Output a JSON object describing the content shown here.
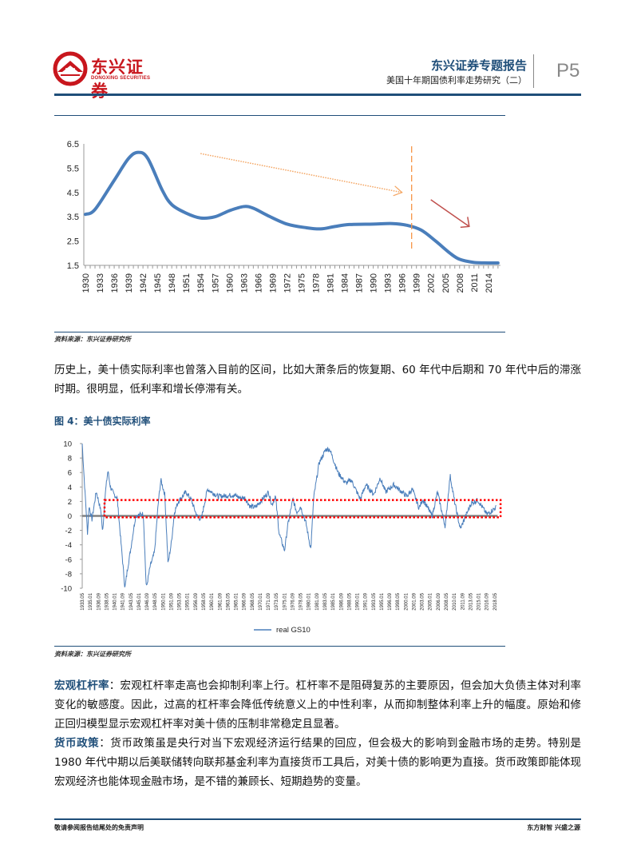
{
  "header": {
    "logo_cn": "东兴证券",
    "logo_en": "DONGXING SECURITIES",
    "report_type": "东兴证券专题报告",
    "report_title": "美国十年期国债利率走势研究（二）",
    "page_number": "P5",
    "brand_color": "#1f4e79",
    "logo_color": "#c8161d"
  },
  "figure3": {
    "source": "资料来源：东兴证券研究所"
  },
  "paragraph1": "历史上，美十债实际利率也曾落入目前的区间，比如大萧条后的恢复期、60 年代中后期和 70 年代中后的滞涨时期。很明显，低利率和增长停滞有关。",
  "figure4": {
    "title": "图 4：美十债实际利率",
    "source": "资料来源：东兴证券研究所"
  },
  "section_leverage": {
    "label": "宏观杠杆率",
    "text": "：宏观杠杆率走高也会抑制利率上行。杠杆率不是阻碍复苏的主要原因，但会加大负债主体对利率变化的敏感度。因此，过高的杠杆率会降低传统意义上的中性利率，从而抑制整体利率上升的幅度。原始和修正回归模型显示宏观杠杆率对美十债的压制非常稳定且显著。"
  },
  "section_monetary": {
    "label": "货币政策",
    "text": "：货币政策虽是央行对当下宏观经济运行结果的回应，但会极大的影响到金融市场的走势。特别是 1980 年代中期以后美联储转向联邦基金利率为直接货币工具后，对美十债的影响更为直接。货币政策即能体现宏观经济也能体现金融市场，是不错的兼顾长、短期趋势的变量。"
  },
  "footer": {
    "left": "敬请参阅报告结尾处的免责声明",
    "right": "东方财智 兴盛之源"
  },
  "chart_data": [
    {
      "type": "line",
      "title": "",
      "xlabel": "",
      "ylabel": "",
      "xlim": [
        1930,
        2016
      ],
      "ylim": [
        1.5,
        6.5
      ],
      "y_ticks": [
        "6.5",
        "5.5",
        "4.5",
        "3.5",
        "2.5",
        "1.5"
      ],
      "x_tick_labels": [
        "1930",
        "1933",
        "1936",
        "1939",
        "1942",
        "1945",
        "1948",
        "1951",
        "1954",
        "1957",
        "1960",
        "1963",
        "1966",
        "1969",
        "1972",
        "1975",
        "1978",
        "1981",
        "1984",
        "1987",
        "1990",
        "1993",
        "1996",
        "1999",
        "2002",
        "2005",
        "2008",
        "2011",
        "2014"
      ],
      "grid": false,
      "line_color": "#4a7ebb",
      "series": [
        {
          "points": [
            [
              1930,
              3.6
            ],
            [
              1932,
              3.8
            ],
            [
              1936,
              5.0
            ],
            [
              1939,
              5.9
            ],
            [
              1941,
              6.15
            ],
            [
              1943,
              5.9
            ],
            [
              1946,
              4.6
            ],
            [
              1948,
              4.0
            ],
            [
              1951,
              3.65
            ],
            [
              1954,
              3.45
            ],
            [
              1957,
              3.5
            ],
            [
              1960,
              3.75
            ],
            [
              1963,
              3.92
            ],
            [
              1965,
              3.85
            ],
            [
              1968,
              3.55
            ],
            [
              1972,
              3.2
            ],
            [
              1976,
              3.05
            ],
            [
              1979,
              3.0
            ],
            [
              1982,
              3.1
            ],
            [
              1985,
              3.18
            ],
            [
              1990,
              3.2
            ],
            [
              1994,
              3.22
            ],
            [
              1997,
              3.15
            ],
            [
              2000,
              2.95
            ],
            [
              2003,
              2.5
            ],
            [
              2006,
              2.0
            ],
            [
              2008,
              1.75
            ],
            [
              2011,
              1.62
            ],
            [
              2014,
              1.6
            ],
            [
              2016,
              1.6
            ]
          ]
        }
      ],
      "annotations": [
        {
          "type": "dotted-arrow",
          "color": "#f4a460",
          "from": [
            1954,
            6.1
          ],
          "to": [
            1996,
            4.5
          ]
        },
        {
          "type": "dashed-vertical-line",
          "color": "#f79646",
          "x": 1998,
          "y_range": [
            2.1,
            6.4
          ]
        },
        {
          "type": "arrow",
          "color": "#c0504d",
          "from": [
            2002,
            4.2
          ],
          "to": [
            2010,
            3.1
          ]
        }
      ]
    },
    {
      "type": "line",
      "title": "",
      "xlabel": "",
      "ylabel": "",
      "ylim": [
        -10,
        10
      ],
      "y_ticks": [
        "10",
        "8",
        "6",
        "4",
        "2",
        "0",
        "-2",
        "-4",
        "-6",
        "-8",
        "-10"
      ],
      "x_tick_labels": [
        "1933.05",
        "1935.01",
        "1936.09",
        "1938.05",
        "1940.01",
        "1941.09",
        "1943.05",
        "1945.01",
        "1946.09",
        "1948.05",
        "1950.01",
        "1951.09",
        "1953.05",
        "1955.01",
        "1956.09",
        "1958.05",
        "1960.01",
        "1961.09",
        "1963.05",
        "1965.01",
        "1966.09",
        "1968.05",
        "1970.01",
        "1971.09",
        "1973.05",
        "1975.01",
        "1976.09",
        "1978.05",
        "1980.01",
        "1981.09",
        "1983.05",
        "1985.01",
        "1986.09",
        "1988.05",
        "1990.01",
        "1991.09",
        "1993.05",
        "1995.01",
        "1996.09",
        "1998.05",
        "2000.01",
        "2001.09",
        "2003.05",
        "2005.01",
        "2006.09",
        "2008.05",
        "2010.01",
        "2011.09",
        "2013.05",
        "2015.01",
        "2016.09",
        "2018.05"
      ],
      "grid": false,
      "legend": "bottom",
      "line_color": "#4a7ebb",
      "zero_line_color": "#808080",
      "series": [
        {
          "name": "real GS10",
          "points": [
            [
              1933.4,
              10
            ],
            [
              1934.0,
              3
            ],
            [
              1934.5,
              -2.5
            ],
            [
              1934.8,
              1.4
            ],
            [
              1935.4,
              -0.5
            ],
            [
              1936.3,
              3.4
            ],
            [
              1937.3,
              0.5
            ],
            [
              1937.6,
              -2.4
            ],
            [
              1938.1,
              2.8
            ],
            [
              1938.7,
              6.3
            ],
            [
              1939.2,
              4
            ],
            [
              1939.9,
              3
            ],
            [
              1940.6,
              2.5
            ],
            [
              1942.2,
              -10
            ],
            [
              1942.8,
              -7
            ],
            [
              1943.3,
              -5
            ],
            [
              1944.4,
              0
            ],
            [
              1946.0,
              0.3
            ],
            [
              1946.6,
              -10
            ],
            [
              1947.4,
              -7
            ],
            [
              1948.3,
              -5
            ],
            [
              1949.1,
              2
            ],
            [
              1949.6,
              5
            ],
            [
              1950.4,
              3
            ],
            [
              1951.1,
              -6.7
            ],
            [
              1951.8,
              -3.5
            ],
            [
              1952.4,
              0.5
            ],
            [
              1953.2,
              2
            ],
            [
              1954.8,
              3.3
            ],
            [
              1955.9,
              2.2
            ],
            [
              1957.0,
              0
            ],
            [
              1957.9,
              -0.5
            ],
            [
              1959.2,
              3.7
            ],
            [
              1961.4,
              2.7
            ],
            [
              1964.7,
              2.9
            ],
            [
              1965.8,
              2.5
            ],
            [
              1966.9,
              2.5
            ],
            [
              1968.0,
              1.3
            ],
            [
              1969.1,
              1.2
            ],
            [
              1971.8,
              3.3
            ],
            [
              1972.5,
              1.5
            ],
            [
              1973.2,
              2.8
            ],
            [
              1974.0,
              -2.5
            ],
            [
              1975.1,
              -4.8
            ],
            [
              1975.7,
              -1.5
            ],
            [
              1976.8,
              2.3
            ],
            [
              1977.6,
              0.5
            ],
            [
              1978.4,
              1.3
            ],
            [
              1979.5,
              -1
            ],
            [
              1980.5,
              -4.6
            ],
            [
              1981.1,
              2.5
            ],
            [
              1982.2,
              7.3
            ],
            [
              1983.6,
              9.2
            ],
            [
              1984.4,
              9.2
            ],
            [
              1986.1,
              6
            ],
            [
              1987.7,
              4.5
            ],
            [
              1988.8,
              5
            ],
            [
              1990.7,
              2.3
            ],
            [
              1991.8,
              4.3
            ],
            [
              1993.5,
              3
            ],
            [
              1994.8,
              5.3
            ],
            [
              1995.9,
              3.3
            ],
            [
              1997.6,
              4.3
            ],
            [
              2000.3,
              2.7
            ],
            [
              2001.4,
              3.7
            ],
            [
              2002.8,
              1.1
            ],
            [
              2003.6,
              2.3
            ],
            [
              2005.5,
              0
            ],
            [
              2006.6,
              3.3
            ],
            [
              2008.2,
              -1.5
            ],
            [
              2009.2,
              5.6
            ],
            [
              2010.2,
              1.7
            ],
            [
              2011.3,
              -1.8
            ],
            [
              2013.5,
              1.7
            ],
            [
              2014.9,
              2.2
            ],
            [
              2016.8,
              0.2
            ],
            [
              2018.7,
              1.2
            ]
          ]
        }
      ],
      "annotations": [
        {
          "type": "dotted-rectangle",
          "color": "#ff0000",
          "x_range": [
            1938.0,
            2019.6
          ],
          "y_range": [
            -0.2,
            2.2
          ]
        }
      ]
    }
  ]
}
